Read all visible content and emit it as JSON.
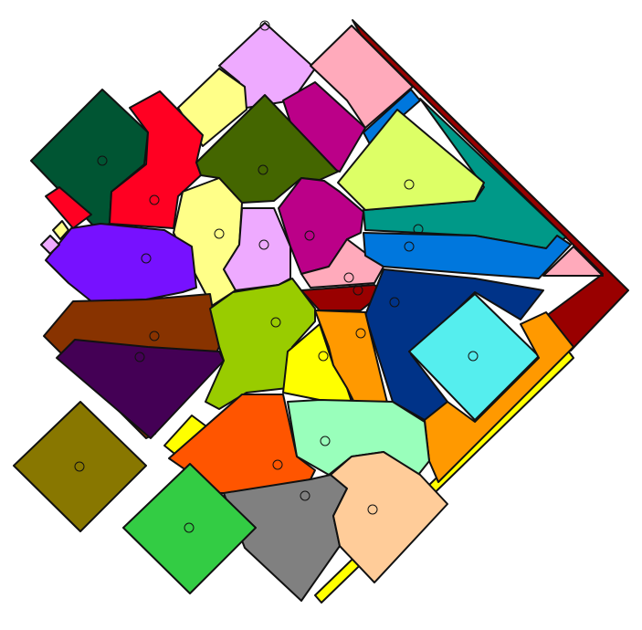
{
  "figure": {
    "background": "#ffffff",
    "outline_color": "#111111",
    "region_colors": {
      "maroon": "#990000",
      "pink": "#ffaabb",
      "lavender": "#eeaaff",
      "light-yellow": "#ffff88",
      "magenta": "#bb0088",
      "blue": "#0077dd",
      "yellow-green": "#ddff66",
      "teal": "#009988",
      "dark-green": "#005533",
      "red": "#ff0022",
      "olive-green": "#446600",
      "violet": "#7711ff",
      "brown": "#883300",
      "dark-purple": "#440055",
      "lime": "#99cc00",
      "navy": "#003388",
      "cyan": "#55eeee",
      "orange": "#ff9900",
      "yellow": "#ffff00",
      "mint": "#99ffbb",
      "vermilion": "#ff5500",
      "grey": "#808080",
      "peach": "#ffcc99",
      "olive": "#887700",
      "green": "#33cc44"
    },
    "site_count": 28
  }
}
